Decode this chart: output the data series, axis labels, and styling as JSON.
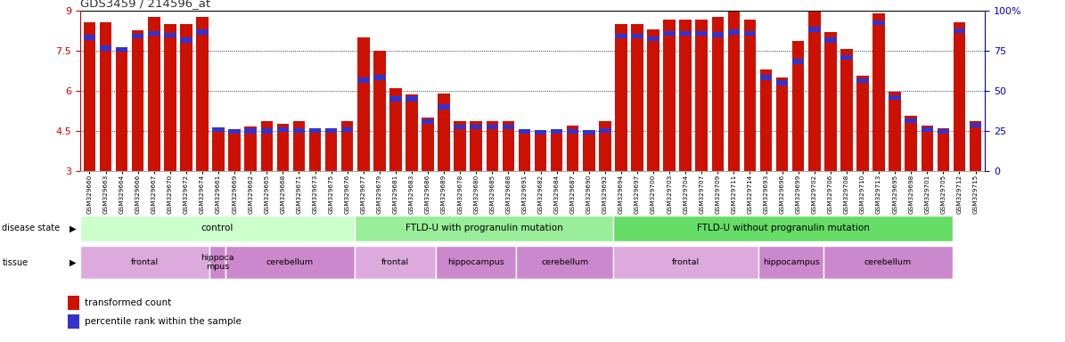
{
  "title": "GDS3459 / 214596_at",
  "ylim": [
    3,
    9
  ],
  "yticks": [
    3,
    4.5,
    6,
    7.5,
    9
  ],
  "y_right_ticks": [
    0,
    25,
    50,
    75,
    100
  ],
  "y_right_labels": [
    "0",
    "25",
    "50",
    "75",
    "100%"
  ],
  "samples": [
    "GSM329660",
    "GSM329663",
    "GSM329664",
    "GSM329666",
    "GSM329667",
    "GSM329670",
    "GSM329672",
    "GSM329674",
    "GSM329661",
    "GSM329669",
    "GSM329662",
    "GSM329665",
    "GSM329668",
    "GSM329671",
    "GSM329673",
    "GSM329675",
    "GSM329676",
    "GSM329677",
    "GSM329679",
    "GSM329681",
    "GSM329683",
    "GSM329686",
    "GSM329689",
    "GSM329678",
    "GSM329680",
    "GSM329685",
    "GSM329688",
    "GSM329691",
    "GSM329682",
    "GSM329684",
    "GSM329687",
    "GSM329690",
    "GSM329692",
    "GSM329694",
    "GSM329697",
    "GSM329700",
    "GSM329703",
    "GSM329704",
    "GSM329707",
    "GSM329709",
    "GSM329711",
    "GSM329714",
    "GSM329693",
    "GSM329696",
    "GSM329699",
    "GSM329702",
    "GSM329706",
    "GSM329708",
    "GSM329710",
    "GSM329713",
    "GSM329695",
    "GSM329698",
    "GSM329701",
    "GSM329705",
    "GSM329712",
    "GSM329715"
  ],
  "bar_heights": [
    8.55,
    8.55,
    7.55,
    8.25,
    8.75,
    8.5,
    8.5,
    8.75,
    4.6,
    4.55,
    4.65,
    4.85,
    4.75,
    4.85,
    4.6,
    4.55,
    4.85,
    8.0,
    7.5,
    6.1,
    5.85,
    5.0,
    5.9,
    4.85,
    4.85,
    4.85,
    4.85,
    4.5,
    4.5,
    4.5,
    4.7,
    4.5,
    4.85,
    8.5,
    8.5,
    8.3,
    8.65,
    8.65,
    8.65,
    8.75,
    9.0,
    8.65,
    6.8,
    6.5,
    7.85,
    9.1,
    8.2,
    7.55,
    6.55,
    8.9,
    5.95,
    5.05,
    4.7,
    4.6,
    8.55,
    4.85
  ],
  "blue_heights": [
    0.18,
    0.18,
    0.18,
    0.18,
    0.18,
    0.18,
    0.18,
    0.18,
    0.18,
    0.18,
    0.18,
    0.18,
    0.18,
    0.18,
    0.18,
    0.18,
    0.18,
    0.18,
    0.18,
    0.18,
    0.18,
    0.18,
    0.18,
    0.18,
    0.18,
    0.18,
    0.18,
    0.18,
    0.18,
    0.18,
    0.18,
    0.18,
    0.18,
    0.18,
    0.18,
    0.18,
    0.18,
    0.18,
    0.18,
    0.18,
    0.18,
    0.18,
    0.18,
    0.18,
    0.18,
    0.18,
    0.18,
    0.18,
    0.18,
    0.18,
    0.18,
    0.18,
    0.18,
    0.18,
    0.18,
    0.18
  ],
  "blue_positions": [
    7.9,
    7.5,
    7.45,
    7.95,
    8.05,
    7.98,
    7.8,
    8.1,
    4.45,
    4.38,
    4.4,
    4.4,
    4.45,
    4.42,
    4.42,
    4.42,
    4.45,
    6.3,
    6.4,
    5.6,
    5.6,
    4.75,
    5.3,
    4.55,
    4.55,
    4.55,
    4.55,
    4.38,
    4.35,
    4.38,
    4.38,
    4.35,
    4.42,
    7.95,
    7.95,
    7.85,
    8.05,
    8.05,
    8.05,
    8.0,
    8.1,
    8.05,
    6.4,
    6.2,
    7.0,
    8.2,
    7.8,
    7.15,
    6.28,
    8.45,
    5.65,
    4.78,
    4.45,
    4.38,
    8.15,
    4.62
  ],
  "disease_state_groups": [
    {
      "label": "control",
      "start": 0,
      "end": 17,
      "color": "#ccffcc"
    },
    {
      "label": "FTLD-U with progranulin mutation",
      "start": 17,
      "end": 33,
      "color": "#99ee99"
    },
    {
      "label": "FTLD-U without progranulin mutation",
      "start": 33,
      "end": 54,
      "color": "#66dd66"
    }
  ],
  "tissue_groups": [
    {
      "label": "frontal",
      "start": 0,
      "end": 8,
      "color": "#ddaadd"
    },
    {
      "label": "hippoca\nmpus",
      "start": 8,
      "end": 9,
      "color": "#cc88cc"
    },
    {
      "label": "cerebellum",
      "start": 9,
      "end": 17,
      "color": "#cc88cc"
    },
    {
      "label": "frontal",
      "start": 17,
      "end": 22,
      "color": "#ddaadd"
    },
    {
      "label": "hippocampus",
      "start": 22,
      "end": 27,
      "color": "#cc88cc"
    },
    {
      "label": "cerebellum",
      "start": 27,
      "end": 33,
      "color": "#cc88cc"
    },
    {
      "label": "frontal",
      "start": 33,
      "end": 42,
      "color": "#ddaadd"
    },
    {
      "label": "hippocampus",
      "start": 42,
      "end": 46,
      "color": "#cc88cc"
    },
    {
      "label": "cerebellum",
      "start": 46,
      "end": 54,
      "color": "#cc88cc"
    }
  ],
  "bar_color": "#cc1100",
  "blue_color": "#3333cc",
  "title_color": "#333333",
  "left_tick_color": "#cc0000",
  "right_tick_color": "#0000cc",
  "grid_color": "#888888",
  "background_color": "#ffffff"
}
